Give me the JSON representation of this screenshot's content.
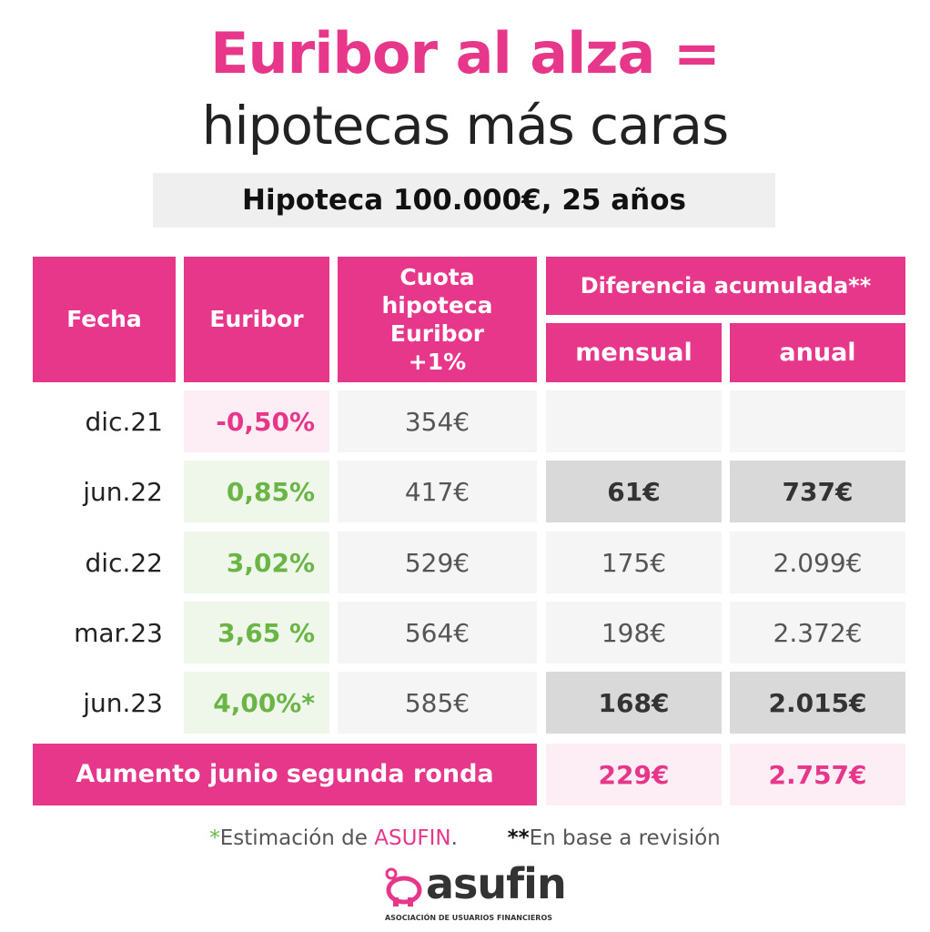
{
  "header": {
    "title": "Euribor al alza =",
    "subtitle": "hipotecas más caras",
    "badge": "Hipoteca 100.000€, 25 años"
  },
  "table": {
    "headers": {
      "fecha": "Fecha",
      "euribor": "Euribor",
      "cuota": "Cuota hipoteca Euribor +1%",
      "diferencia": "Diferencia acumulada**",
      "mensual": "mensual",
      "anual": "anual"
    },
    "rows": [
      {
        "fecha": "dic.21",
        "euribor": "-0,50%",
        "cuota": "354€"
      },
      {
        "fecha": "jun.22",
        "euribor": "0,85%",
        "cuota": "417€",
        "mensual": "61€",
        "anual": "737€"
      },
      {
        "fecha": "dic.22",
        "euribor": "3,02%",
        "cuota": "529€",
        "mensual": "175€",
        "anual": "2.099€"
      },
      {
        "fecha": "mar.23",
        "euribor": "3,65 %",
        "cuota": "564€",
        "mensual": "198€",
        "anual": "2.372€"
      },
      {
        "fecha": "jun.23",
        "euribor": "4,00%*",
        "cuota": "585€",
        "mensual": "168€",
        "anual": "2.015€"
      }
    ],
    "footer": {
      "label": "Aumento junio segunda ronda",
      "mensual": "229€",
      "anual": "2.757€"
    }
  },
  "notes": {
    "star1": "*",
    "text1a": "Estimación de ",
    "brand": "ASUFIN",
    "text1b": ".",
    "star2": "**",
    "text2": "En base a revisión"
  },
  "logo": {
    "name": "asufin",
    "tagline": "ASOCIACIÓN DE USUARIOS FINANCIEROS"
  }
}
